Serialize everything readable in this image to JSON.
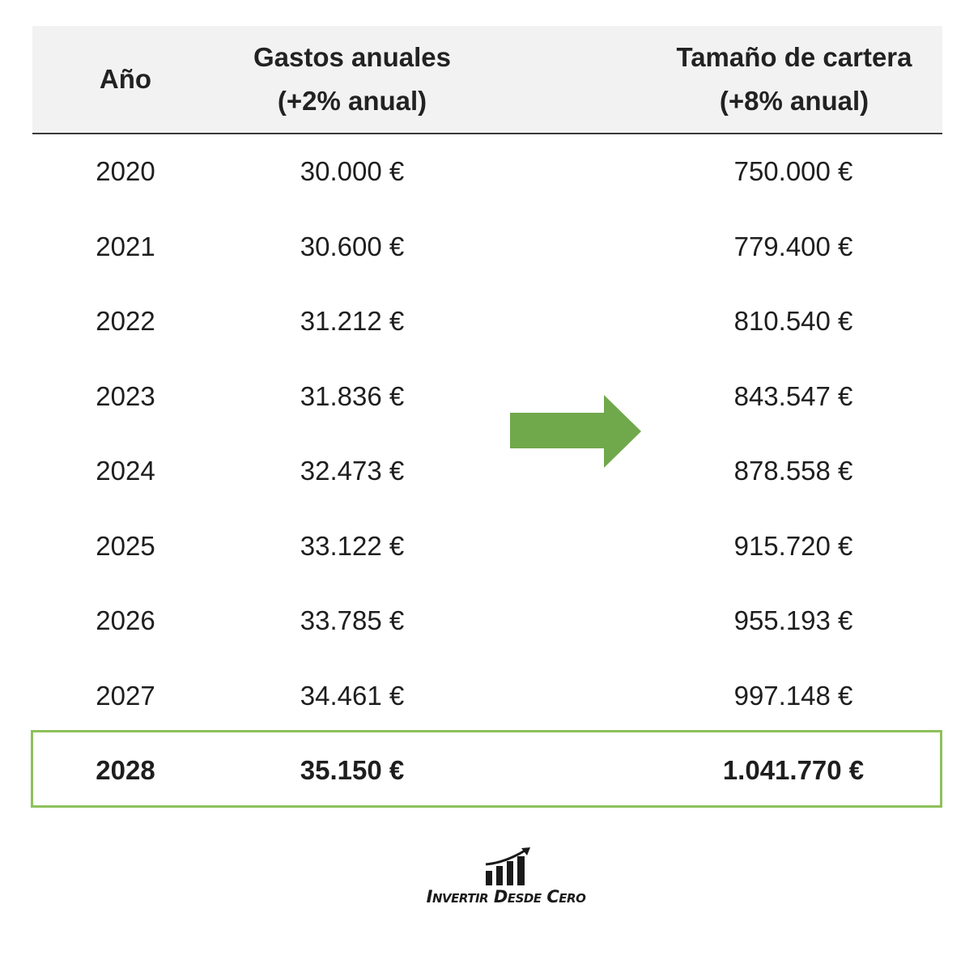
{
  "table": {
    "headers": {
      "year": "Año",
      "expenses_line1": "Gastos anuales",
      "expenses_line2": "(+2% anual)",
      "portfolio_line1": "Tamaño de cartera",
      "portfolio_line2": "(+8% anual)"
    },
    "rows": [
      {
        "year": "2020",
        "expenses": "30.000 €",
        "portfolio": "750.000 €"
      },
      {
        "year": "2021",
        "expenses": "30.600 €",
        "portfolio": "779.400 €"
      },
      {
        "year": "2022",
        "expenses": "31.212 €",
        "portfolio": "810.540 €"
      },
      {
        "year": "2023",
        "expenses": "31.836 €",
        "portfolio": "843.547 €"
      },
      {
        "year": "2024",
        "expenses": "32.473 €",
        "portfolio": "878.558 €"
      },
      {
        "year": "2025",
        "expenses": "33.122 €",
        "portfolio": "915.720 €"
      },
      {
        "year": "2026",
        "expenses": "33.785 €",
        "portfolio": "955.193 €"
      },
      {
        "year": "2027",
        "expenses": "34.461 €",
        "portfolio": "997.148 €"
      },
      {
        "year": "2028",
        "expenses": "35.150 €",
        "portfolio": "1.041.770 €"
      }
    ],
    "highlight_color": "#8dc15a"
  },
  "arrow": {
    "icon": "right-arrow-icon",
    "color": "#70a84c"
  },
  "logo": {
    "icon": "bar-chart-growth-icon",
    "text": "Invertir Desde Cero"
  }
}
